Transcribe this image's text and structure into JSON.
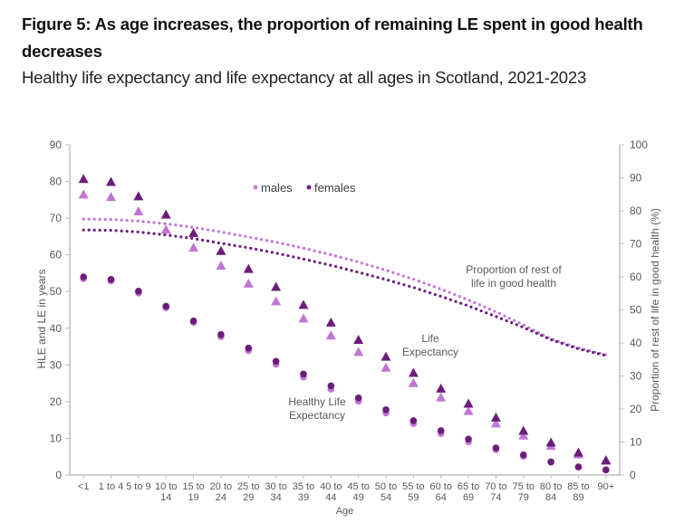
{
  "figure": {
    "title": "Figure 5: As age increases, the proportion of remaining LE spent in good health decreases",
    "subtitle": "Healthy life expectancy and life expectancy at all ages in Scotland, 2021-2023"
  },
  "colors": {
    "males": "#c077d4",
    "females": "#6a1e7a",
    "axis": "#bfbfbf",
    "text": "#595959"
  },
  "chart_data": {
    "type": "scatter",
    "title": "Healthy life expectancy and life expectancy at all ages in Scotland, 2021-2023",
    "xlabel": "Age",
    "ylabel": "HLE and LE in years",
    "y2label": "Proportion of rest of life in good health (%)",
    "ylim": [
      0,
      90
    ],
    "y2lim": [
      0,
      100
    ],
    "yticks": [
      0,
      10,
      20,
      30,
      40,
      50,
      60,
      70,
      80,
      90
    ],
    "y2ticks": [
      0,
      10,
      20,
      30,
      40,
      50,
      60,
      70,
      80,
      90,
      100
    ],
    "grid": false,
    "legend": {
      "position": "top-center",
      "entries": [
        "males",
        "females"
      ]
    },
    "categories": [
      [
        "<1"
      ],
      [
        "1 to 4"
      ],
      [
        "5 to 9"
      ],
      [
        "10 to",
        "14"
      ],
      [
        "15 to",
        "19"
      ],
      [
        "20 to",
        "24"
      ],
      [
        "25 to",
        "29"
      ],
      [
        "30 to",
        "34"
      ],
      [
        "35 to",
        "39"
      ],
      [
        "40 to",
        "44"
      ],
      [
        "45 to",
        "49"
      ],
      [
        "50 to",
        "54"
      ],
      [
        "55 to",
        "59"
      ],
      [
        "60 to",
        "64"
      ],
      [
        "65 to",
        "69"
      ],
      [
        "70 to",
        "74"
      ],
      [
        "75 to",
        "79"
      ],
      [
        "80 to",
        "84"
      ],
      [
        "85 to",
        "89"
      ],
      [
        "90+"
      ]
    ],
    "annotations": {
      "proportion": [
        "Proportion of rest of",
        "life in good health"
      ],
      "le": [
        "Life",
        "Expectancy"
      ],
      "hle": [
        "Healthy Life",
        "Expectancy"
      ]
    },
    "series": [
      {
        "name": "Male LE",
        "group": "males",
        "marker": "triangle",
        "axis": "left",
        "values": [
          76.6,
          75.9,
          72.0,
          67.0,
          62.1,
          57.2,
          52.3,
          47.5,
          42.8,
          38.2,
          33.7,
          29.4,
          25.2,
          21.3,
          17.6,
          14.2,
          10.9,
          8.1,
          5.8,
          4.0
        ]
      },
      {
        "name": "Female LE",
        "group": "females",
        "marker": "triangle",
        "axis": "left",
        "values": [
          80.8,
          80.0,
          76.1,
          71.1,
          66.1,
          61.2,
          56.3,
          51.4,
          46.5,
          41.7,
          37.0,
          32.4,
          28.0,
          23.7,
          19.6,
          15.8,
          12.2,
          9.0,
          6.3,
          4.2
        ]
      },
      {
        "name": "Male HLE",
        "group": "males",
        "marker": "circle",
        "axis": "left",
        "values": [
          53.5,
          52.9,
          49.6,
          45.6,
          41.6,
          37.7,
          33.9,
          30.2,
          26.7,
          23.4,
          20.1,
          16.9,
          14.0,
          11.3,
          9.0,
          6.9,
          5.1,
          3.5,
          2.2,
          1.4
        ]
      },
      {
        "name": "Female HLE",
        "group": "females",
        "marker": "circle",
        "axis": "left",
        "values": [
          54.0,
          53.3,
          50.1,
          46.0,
          42.0,
          38.3,
          34.6,
          31.0,
          27.5,
          24.3,
          21.0,
          17.8,
          14.8,
          12.1,
          9.8,
          7.4,
          5.5,
          3.6,
          2.2,
          1.4
        ]
      },
      {
        "name": "Male proportion in good health",
        "group": "males",
        "marker": "dotted-line",
        "axis": "right",
        "values": [
          77.5,
          77.4,
          76.9,
          76.1,
          75.0,
          73.6,
          72.1,
          70.5,
          68.7,
          66.7,
          64.5,
          62.0,
          59.3,
          56.3,
          53.0,
          49.4,
          45.5,
          41.2,
          38.5,
          36.4
        ]
      },
      {
        "name": "Female proportion in good health",
        "group": "females",
        "marker": "dotted-line",
        "axis": "right",
        "values": [
          74.2,
          74.1,
          73.6,
          72.7,
          71.6,
          70.2,
          68.8,
          67.2,
          65.4,
          63.5,
          61.4,
          59.2,
          56.8,
          54.1,
          51.2,
          48.0,
          44.7,
          41.0,
          38.2,
          36.2
        ]
      }
    ]
  }
}
